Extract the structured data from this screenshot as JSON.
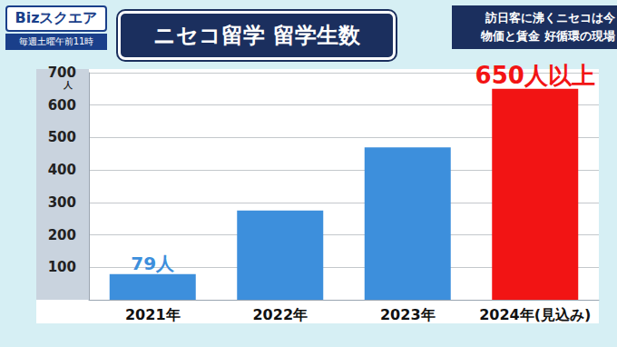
{
  "page": {
    "logo": "Bizスクエア",
    "schedule": "毎週土曜午前11時",
    "caption": [
      "訪日客に沸くニセコは今",
      "物価と賃金 好循環の現場"
    ]
  },
  "chart_data": {
    "type": "bar",
    "title": "ニセコ留学 留学生数",
    "categories": [
      "2021年",
      "2022年",
      "2023年",
      "2024年(見込み)"
    ],
    "values": [
      79,
      275,
      470,
      650
    ],
    "value_labels": [
      "79人",
      null,
      null,
      "650人以上"
    ],
    "data_labels": true,
    "colors": [
      "#3d8fdc",
      "#3d8fdc",
      "#3d8fdc",
      "#f21414"
    ],
    "ylabel": "人",
    "ylim": [
      0,
      700
    ],
    "yticks": [
      100,
      200,
      300,
      400,
      500,
      600,
      700
    ],
    "grid": true
  }
}
